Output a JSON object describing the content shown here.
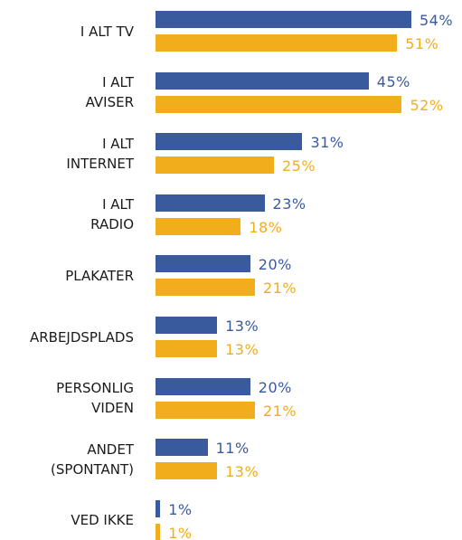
{
  "chart_data": {
    "type": "bar",
    "orientation": "horizontal",
    "categories": [
      "I ALT TV",
      "I ALT\nAVISER",
      "I ALT\nINTERNET",
      "I ALT\nRADIO",
      "PLAKATER",
      "ARBEJDSPLADS",
      "PERSONLIG\nVIDEN",
      "ANDET\n(SPONTANT)",
      "VED IKKE"
    ],
    "series": [
      {
        "color": "#3a5a9e",
        "values": [
          54,
          45,
          31,
          23,
          20,
          13,
          20,
          11,
          1
        ],
        "value_labels": [
          "54%",
          "45%",
          "31%",
          "23%",
          "20%",
          "13%",
          "20%",
          "11%",
          "1%"
        ]
      },
      {
        "color": "#f2ad1c",
        "values": [
          51,
          52,
          25,
          18,
          21,
          13,
          21,
          13,
          1
        ],
        "value_labels": [
          "51%",
          "52%",
          "25%",
          "18%",
          "21%",
          "13%",
          "21%",
          "13%",
          "1%"
        ]
      }
    ]
  }
}
